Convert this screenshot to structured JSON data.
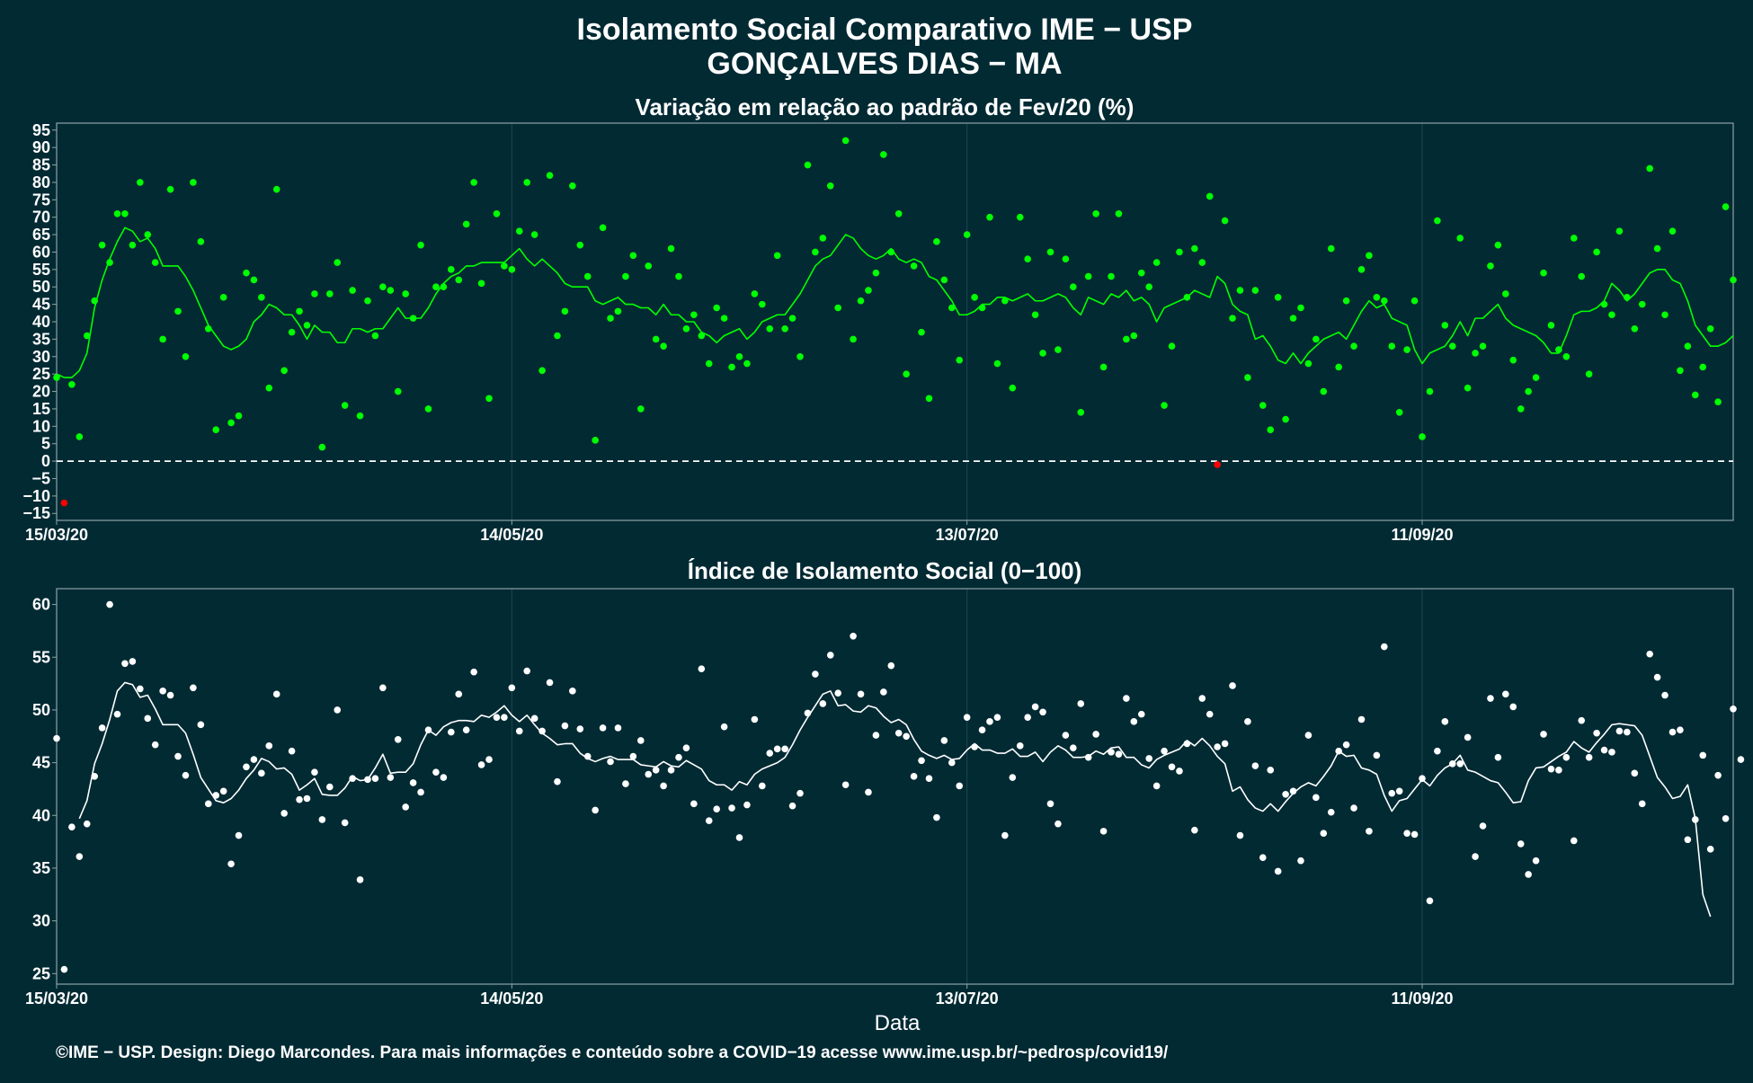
{
  "page": {
    "title_line1": "Isolamento Social Comparativo IME − USP",
    "title_line2": "GONÇALVES DIAS − MA",
    "footer": "©IME − USP. Design: Diego Marcondes. Para mais informações e conteúdo sobre a COVID−19 acesse www.ime.usp.br/~pedrosp/covid19/"
  },
  "colors": {
    "background": "#022a33",
    "panel_border": "#8fa3a8",
    "gridline": "#1d4751",
    "top_series": "#00ff00",
    "negative_points": "#ff0000",
    "bottom_series": "#ffffff",
    "zero_line": "#ffffff"
  },
  "chart_data": [
    {
      "type": "scatter",
      "title": "Variação em relação ao padrão de Fev/20 (%)",
      "xlabel": "",
      "ylabel": "",
      "x_ticks": [
        "15/03/20",
        "14/05/20",
        "13/07/20",
        "11/09/20"
      ],
      "x_tick_days": [
        0,
        60,
        120,
        180
      ],
      "x_range_days": [
        0,
        221
      ],
      "ylim": [
        -17,
        97
      ],
      "y_ticks": [
        -15,
        -10,
        -5,
        0,
        5,
        10,
        15,
        20,
        25,
        30,
        35,
        40,
        45,
        50,
        55,
        60,
        65,
        70,
        75,
        80,
        85,
        90,
        95
      ],
      "reference_line": 0,
      "series": [
        {
          "kind": "points",
          "values": [
            24,
            -12,
            22,
            7,
            36,
            46,
            62,
            57,
            71,
            71,
            62,
            80,
            65,
            57,
            35,
            78,
            43,
            30,
            80,
            63,
            38,
            9,
            47,
            11,
            13,
            54,
            52,
            47,
            21,
            78,
            26,
            37,
            43,
            39,
            48,
            4,
            48,
            57,
            16,
            49,
            13,
            46,
            36,
            50,
            49,
            20,
            48,
            41,
            62,
            15,
            50,
            50,
            55,
            52,
            68,
            80,
            51,
            18,
            71,
            56,
            55,
            66,
            80,
            65,
            26,
            82,
            36,
            43,
            79,
            62,
            53,
            6,
            67,
            41,
            43,
            53,
            59,
            15,
            56,
            35,
            33,
            61,
            53,
            38,
            42,
            36,
            28,
            44,
            41,
            27,
            30,
            28,
            48,
            45,
            38,
            59,
            38,
            41,
            30,
            85,
            60,
            64,
            79,
            44,
            92,
            35,
            46,
            49,
            54,
            88,
            60,
            71,
            25,
            56,
            37,
            18,
            63,
            52,
            44,
            29,
            65,
            47,
            44,
            70,
            28,
            46,
            21,
            70,
            58,
            42,
            31,
            60,
            32,
            58,
            50,
            14,
            53,
            71,
            27,
            53,
            71,
            35,
            36,
            54,
            50,
            57,
            16,
            33,
            60,
            47,
            61,
            57,
            76,
            -1,
            69,
            41,
            49,
            24,
            49,
            16,
            9,
            47,
            12,
            41,
            44,
            28,
            35,
            20,
            61,
            27,
            46,
            33,
            55,
            59,
            47,
            46,
            33,
            14,
            32,
            46,
            7,
            20,
            69,
            39,
            33,
            64,
            21,
            31,
            33,
            56,
            62,
            48,
            29,
            15,
            20,
            24,
            54,
            39,
            32,
            30,
            64,
            53,
            25,
            60,
            45,
            42,
            66,
            47,
            38,
            45,
            84,
            61,
            42,
            66,
            26,
            33,
            19,
            27,
            38,
            17,
            73,
            52
          ],
          "negative_color": "#ff0000"
        },
        {
          "kind": "moving-average",
          "values": [
            25,
            24,
            24,
            26,
            31,
            44,
            52,
            58,
            63,
            67,
            66,
            63,
            64,
            61,
            56,
            56,
            56,
            53,
            49,
            44,
            39,
            36,
            33,
            32,
            33,
            35,
            40,
            42,
            45,
            44,
            42,
            42,
            39,
            35,
            39,
            37,
            37,
            34,
            34,
            38,
            38,
            37,
            38,
            38,
            41,
            44,
            41,
            41,
            41,
            44,
            48,
            51,
            53,
            54,
            56,
            56,
            57,
            57,
            57,
            57,
            59,
            61,
            58,
            56,
            58,
            56,
            54,
            51,
            50,
            50,
            50,
            46,
            45,
            46,
            47,
            45,
            45,
            44,
            44,
            42,
            45,
            42,
            42,
            40,
            40,
            37,
            36,
            34,
            36,
            37,
            38,
            35,
            37,
            40,
            41,
            42,
            42,
            45,
            48,
            52,
            56,
            58,
            59,
            62,
            65,
            64,
            61,
            59,
            58,
            59,
            61,
            58,
            57,
            58,
            57,
            53,
            52,
            49,
            46,
            42,
            42,
            43,
            45,
            45,
            47,
            47,
            46,
            47,
            48,
            46,
            46,
            47,
            48,
            47,
            44,
            42,
            47,
            46,
            45,
            48,
            47,
            49,
            46,
            47,
            45,
            40,
            44,
            45,
            46,
            47,
            49,
            48,
            47,
            53,
            51,
            45,
            43,
            42,
            35,
            36,
            33,
            29,
            28,
            31,
            28,
            31,
            33,
            35,
            36,
            37,
            35,
            39,
            43,
            46,
            44,
            45,
            41,
            40,
            39,
            32,
            28,
            31,
            32,
            33,
            36,
            40,
            36,
            41,
            41,
            43,
            45,
            41,
            39,
            38,
            37,
            36,
            34,
            31,
            31,
            36,
            42,
            43,
            43,
            44,
            46,
            51,
            49,
            46,
            48,
            51,
            54,
            55,
            55,
            52,
            51,
            46,
            39,
            36,
            33,
            33,
            34,
            36
          ]
        }
      ]
    },
    {
      "type": "scatter",
      "title": "Índice de Isolamento Social (0−100)",
      "xlabel": "Data",
      "ylabel": "",
      "x_ticks": [
        "15/03/20",
        "14/05/20",
        "13/07/20",
        "11/09/20"
      ],
      "x_tick_days": [
        0,
        60,
        120,
        180
      ],
      "x_range_days": [
        0,
        221
      ],
      "ylim": [
        24,
        61.5
      ],
      "y_ticks": [
        25,
        30,
        35,
        40,
        45,
        50,
        55,
        60
      ],
      "series": [
        {
          "kind": "points",
          "values": [
            47.3,
            25.4,
            38.9,
            36.1,
            39.2,
            43.7,
            48.3,
            60,
            49.6,
            54.4,
            54.6,
            52,
            49.2,
            46.7,
            51.8,
            51.4,
            45.6,
            43.8,
            52.1,
            48.6,
            41.1,
            41.9,
            42.3,
            35.4,
            38.1,
            44.6,
            45.3,
            44,
            46.6,
            51.5,
            40.2,
            46.1,
            41.5,
            41.6,
            44.1,
            39.6,
            42.7,
            50,
            39.3,
            43.5,
            33.9,
            43.4,
            43.5,
            52.1,
            43.6,
            47.2,
            40.8,
            43.1,
            42.2,
            48.1,
            44.1,
            43.6,
            47.9,
            51.5,
            48.1,
            53.6,
            44.8,
            45.3,
            49.3,
            49.3,
            52.1,
            48,
            53.7,
            49.2,
            48,
            52.6,
            43.2,
            48.5,
            51.8,
            48.2,
            45.6,
            40.5,
            48.3,
            45.1,
            48.3,
            43,
            45.6,
            47.1,
            43.9,
            44.3,
            42.8,
            44.3,
            45.5,
            46.4,
            41.1,
            53.9,
            39.5,
            40.6,
            48.4,
            40.7,
            37.9,
            41,
            49.1,
            42.8,
            45.9,
            46.3,
            46.3,
            40.9,
            42.1,
            49.7,
            53.4,
            50.6,
            55.2,
            51.6,
            42.9,
            57,
            51.5,
            42.2,
            47.6,
            51.7,
            54.2,
            47.8,
            47.5,
            43.7,
            45.2,
            43.5,
            39.8,
            47.1,
            45,
            42.8,
            49.3,
            46.5,
            48.1,
            48.9,
            49.3,
            38.1,
            43.6,
            46.6,
            49.3,
            50.3,
            49.8,
            41.1,
            39.2,
            47.6,
            46.4,
            50.6,
            45.5,
            47.7,
            38.5,
            46,
            45.8,
            51.1,
            48.9,
            49.6,
            45.4,
            42.8,
            46.1,
            44.6,
            44.2,
            46.8,
            38.6,
            51.1,
            49.6,
            46.5,
            46.8,
            52.3,
            38.1,
            48.9,
            44.7,
            36,
            44.3,
            34.7,
            42,
            42.3,
            35.7,
            47.6,
            41.7,
            38.3,
            40.3,
            46.1,
            46.7,
            40.7,
            49.1,
            38.5,
            45.7,
            56,
            42.1,
            42.3,
            38.3,
            38.2,
            43.5,
            31.9,
            46.1,
            48.9,
            44.9,
            44.9,
            47.4,
            36.1,
            39,
            51.1,
            45.5,
            51.5,
            50.3,
            37.3,
            34.4,
            35.7,
            47.7,
            44.4,
            44.3,
            45.5,
            37.6,
            49,
            45.5,
            47.8,
            46.2,
            46,
            48,
            47.9,
            44,
            41.1,
            55.3,
            53.1,
            51.4,
            47.9,
            48.1,
            37.7,
            39.6,
            45.7,
            36.8,
            43.8,
            39.7,
            50.1,
            45.3
          ]
        },
        {
          "kind": "moving-average",
          "values": [
            null,
            null,
            null,
            39.7,
            41.4,
            44.9,
            46.8,
            49.1,
            51.8,
            52.6,
            52.4,
            51.2,
            51.4,
            50.1,
            48.6,
            48.6,
            48.6,
            47.8,
            45.8,
            43.6,
            42.5,
            41.4,
            41.2,
            41.6,
            42.4,
            43.5,
            44.3,
            45.4,
            45.1,
            44.4,
            44.5,
            43.9,
            42.4,
            42.9,
            43.5,
            42,
            41.9,
            41.9,
            42.6,
            43.7,
            43.3,
            43.4,
            44.5,
            45.8,
            44,
            44.1,
            44.1,
            44.9,
            46.7,
            48.1,
            47.6,
            48.4,
            48.8,
            49,
            49,
            48.9,
            49.5,
            49.3,
            49.8,
            50.4,
            49.5,
            48.9,
            49.5,
            48.6,
            47.8,
            47.3,
            46.7,
            46.8,
            46.8,
            45.9,
            45.4,
            45.1,
            45.4,
            45.6,
            45.3,
            45.3,
            45.3,
            44.8,
            44.7,
            44.6,
            45.1,
            44.7,
            44.6,
            45.2,
            44.8,
            44.4,
            43.3,
            42.9,
            42.9,
            42.4,
            43.2,
            42.9,
            43.9,
            44.4,
            44.7,
            45,
            45.5,
            46.7,
            48.1,
            49.3,
            50.4,
            51.5,
            51.8,
            50.4,
            50.5,
            49.9,
            49.8,
            50.4,
            50.2,
            49.4,
            48.8,
            49.1,
            48.6,
            47.2,
            46.1,
            45.7,
            45.4,
            45.7,
            45.3,
            45.4,
            46.2,
            46.8,
            46.2,
            46.2,
            45.9,
            45.9,
            46.3,
            45.6,
            45.6,
            46,
            45.1,
            46,
            46.6,
            46.2,
            45.5,
            45.5,
            45.6,
            46.1,
            45.8,
            46.4,
            46.5,
            45.5,
            45.5,
            44.8,
            44.5,
            45.3,
            45.7,
            46,
            46.3,
            47.1,
            46.6,
            47.3,
            46.6,
            45.6,
            44.9,
            42.3,
            42.7,
            41.5,
            40.7,
            40.4,
            41.1,
            40.4,
            41.3,
            42.1,
            42.7,
            43.1,
            42.8,
            43.7,
            44.7,
            46.1,
            45.6,
            45.7,
            44.5,
            44.3,
            43.9,
            41.9,
            40.4,
            41.4,
            41.6,
            42.5,
            43.4,
            42.8,
            43.8,
            44.5,
            44.9,
            45.7,
            44.3,
            44.1,
            43.7,
            43.3,
            43.1,
            42.2,
            41.2,
            41.3,
            43.3,
            44.5,
            44.6,
            45.1,
            45.6,
            46,
            47,
            46.4,
            46,
            46.9,
            47.7,
            48.6,
            48.7,
            48.6,
            48.5,
            47.6,
            45.6,
            43.6,
            42.7,
            41.6,
            41.8,
            42.9,
            39.7,
            32.5,
            30.4
          ]
        }
      ]
    }
  ]
}
